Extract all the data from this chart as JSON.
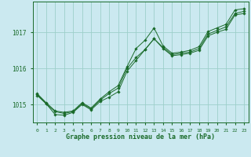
{
  "title": "Graphe pression niveau de la mer (hPa)",
  "background_color": "#cbe9f0",
  "grid_color": "#9dcfca",
  "line_color": "#1a6b2a",
  "marker_color": "#1a6b2a",
  "xlim": [
    -0.5,
    23.5
  ],
  "ylim": [
    1014.5,
    1017.85
  ],
  "yticks": [
    1015,
    1016,
    1017
  ],
  "xticks": [
    0,
    1,
    2,
    3,
    4,
    5,
    6,
    7,
    8,
    9,
    10,
    11,
    12,
    13,
    14,
    15,
    16,
    17,
    18,
    19,
    20,
    21,
    22,
    23
  ],
  "series": [
    [
      1015.3,
      1015.05,
      1014.82,
      1014.78,
      1014.82,
      1015.05,
      1014.9,
      1015.15,
      1015.35,
      1015.52,
      1016.05,
      1016.55,
      1016.78,
      1017.12,
      1016.62,
      1016.42,
      1016.45,
      1016.5,
      1016.6,
      1017.02,
      1017.12,
      1017.22,
      1017.62,
      1017.65
    ],
    [
      1015.28,
      1015.02,
      1014.8,
      1014.75,
      1014.8,
      1015.02,
      1014.88,
      1015.12,
      1015.3,
      1015.45,
      1016.0,
      1016.3,
      1016.52,
      1016.82,
      1016.58,
      1016.38,
      1016.42,
      1016.45,
      1016.55,
      1016.95,
      1017.05,
      1017.15,
      1017.52,
      1017.58
    ],
    [
      1015.25,
      1015.02,
      1014.72,
      1014.7,
      1014.78,
      1015.0,
      1014.85,
      1015.08,
      1015.2,
      1015.35,
      1015.92,
      1016.22,
      1016.52,
      1016.82,
      1016.55,
      1016.35,
      1016.38,
      1016.42,
      1016.5,
      1016.9,
      1017.0,
      1017.08,
      1017.48,
      1017.52
    ]
  ]
}
